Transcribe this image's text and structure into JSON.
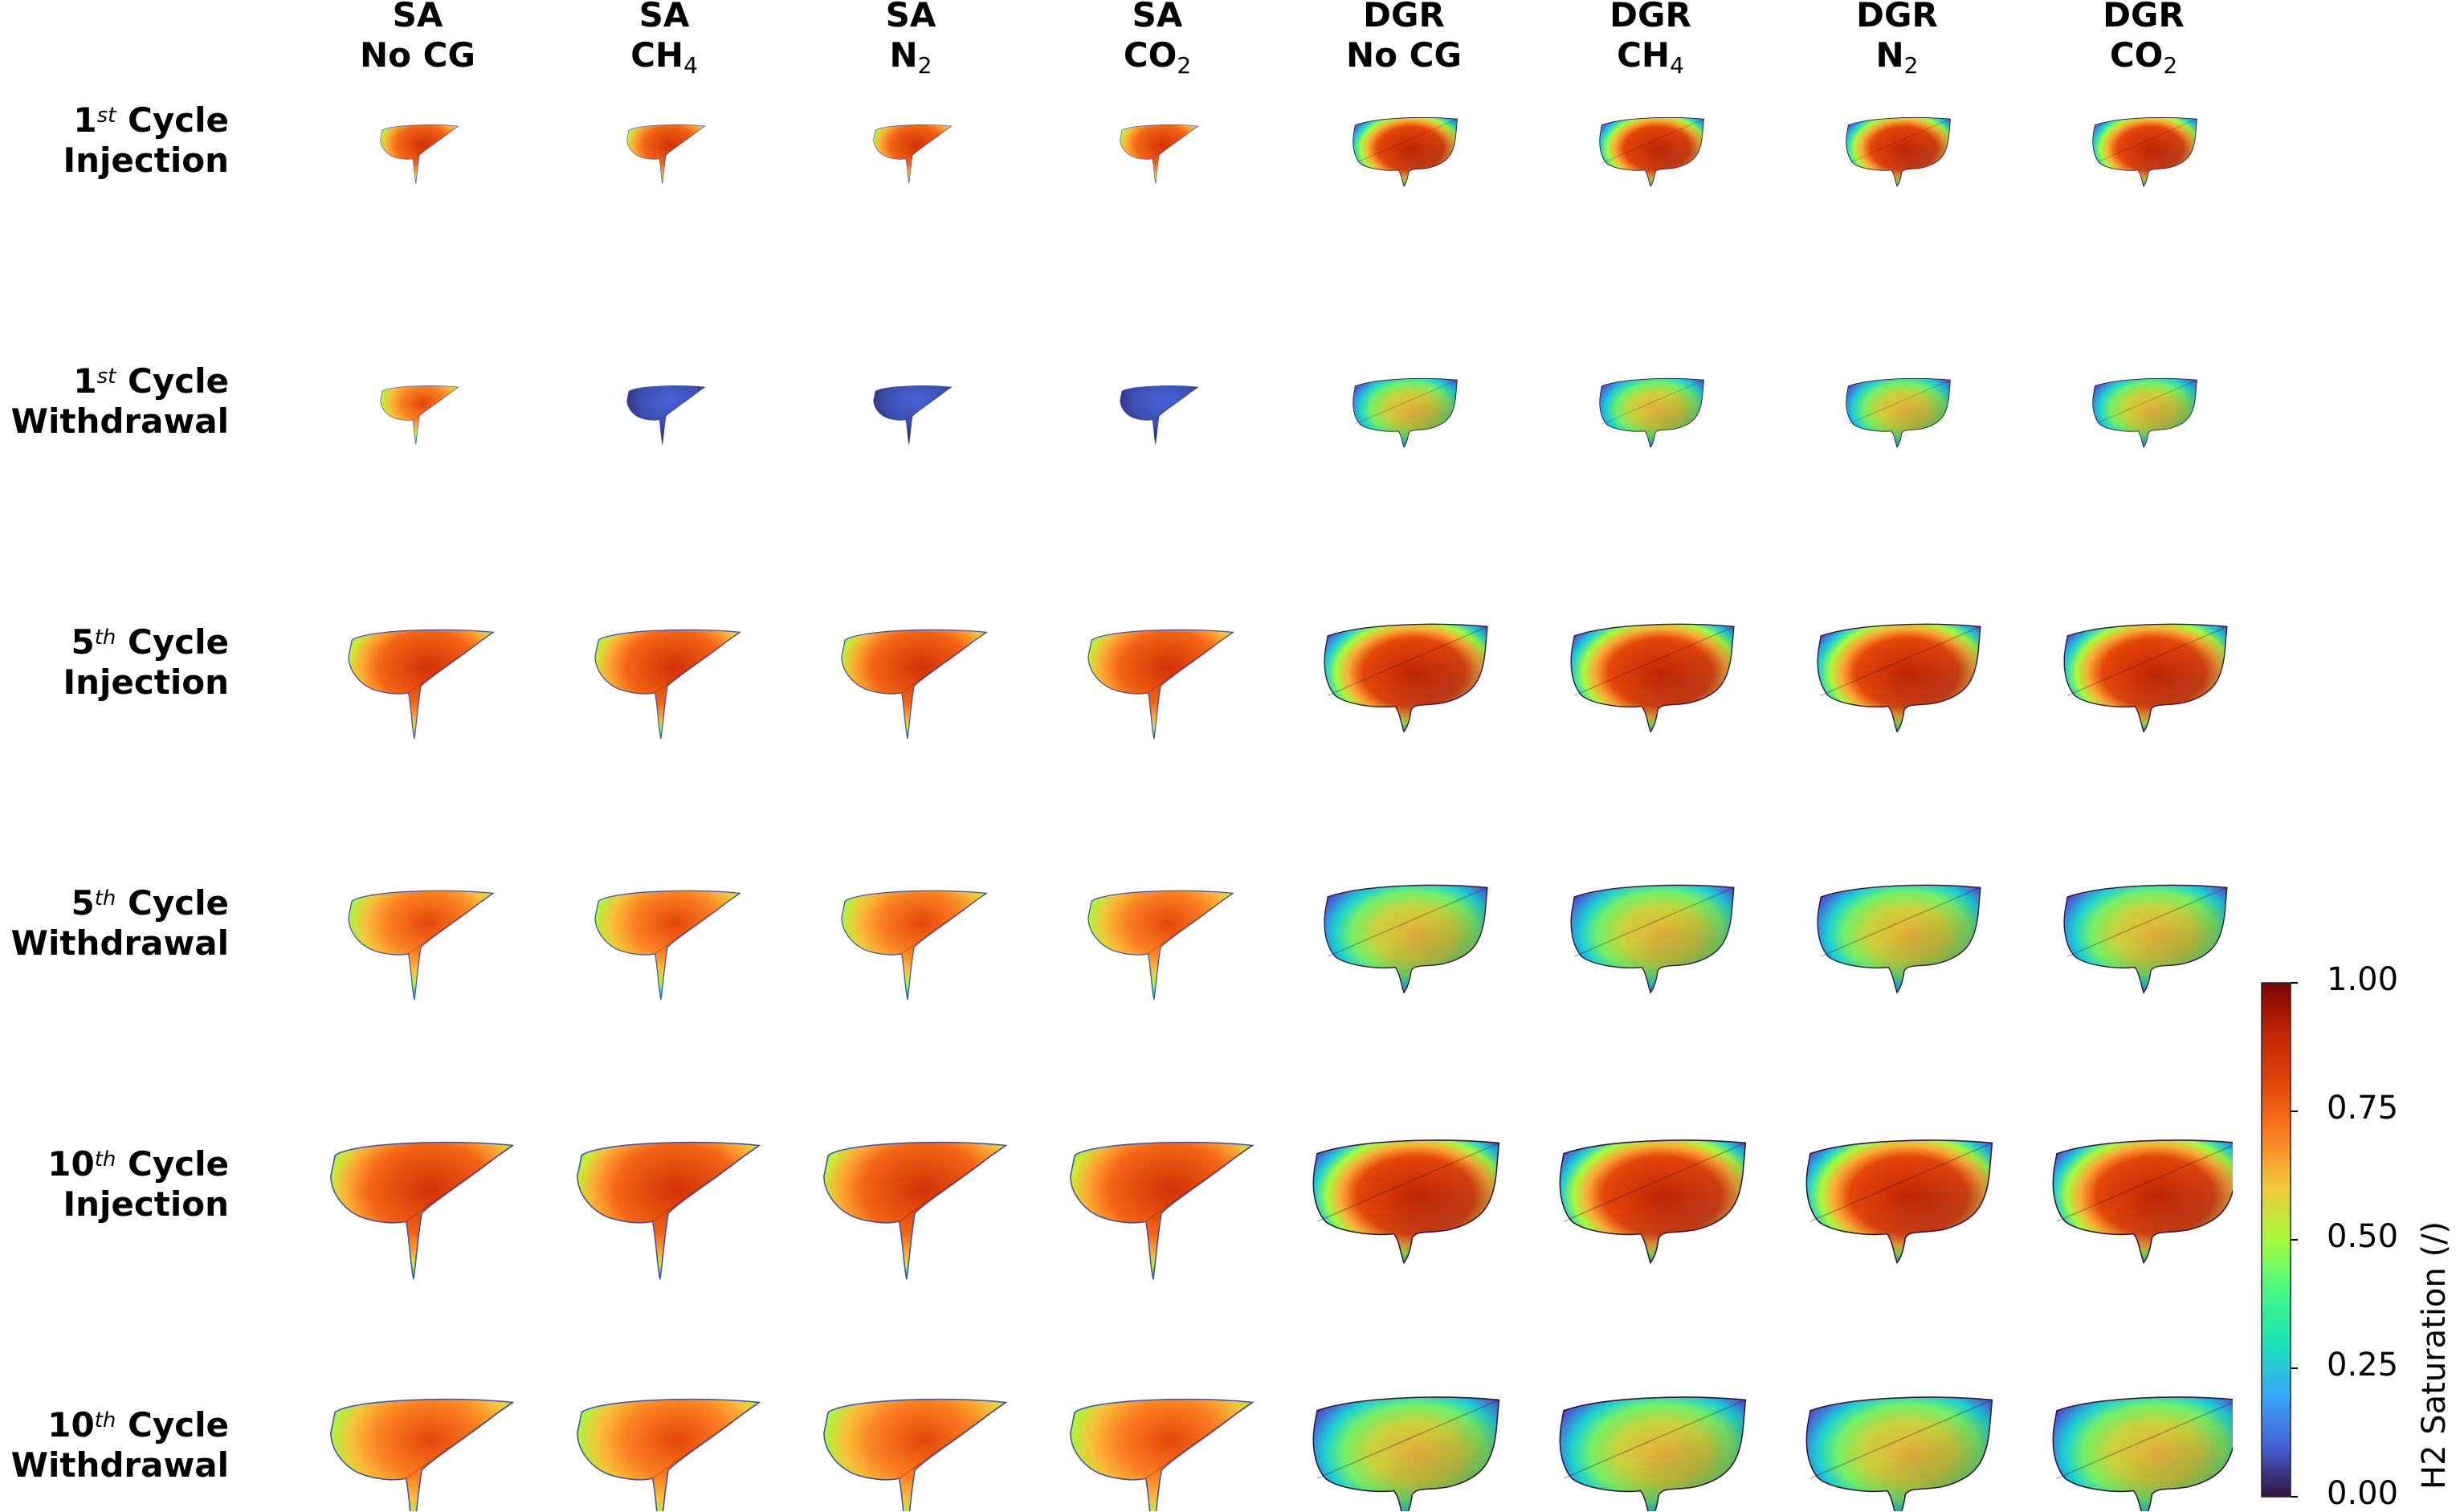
{
  "columns": [
    {
      "line1": "SA",
      "line2": "No CG",
      "sub": ""
    },
    {
      "line1": "SA",
      "line2": "CH",
      "sub": "4"
    },
    {
      "line1": "SA",
      "line2": "N",
      "sub": "2"
    },
    {
      "line1": "SA",
      "line2": "CO",
      "sub": "2"
    },
    {
      "line1": "DGR",
      "line2": "No CG",
      "sub": ""
    },
    {
      "line1": "DGR",
      "line2": "CH",
      "sub": "4"
    },
    {
      "line1": "DGR",
      "line2": "N",
      "sub": "2"
    },
    {
      "line1": "DGR",
      "line2": "CO",
      "sub": "2"
    }
  ],
  "rows": [
    {
      "num": "1",
      "sup": "st",
      "word": "Cycle",
      "line2": "Injection"
    },
    {
      "num": "1",
      "sup": "st",
      "word": "Cycle",
      "line2": "Withdrawal"
    },
    {
      "num": "5",
      "sup": "th",
      "word": "Cycle",
      "line2": "Injection"
    },
    {
      "num": "5",
      "sup": "th",
      "word": "Cycle",
      "line2": "Withdrawal"
    },
    {
      "num": "10",
      "sup": "th",
      "word": "Cycle",
      "line2": "Injection"
    },
    {
      "num": "10",
      "sup": "th",
      "word": "Cycle",
      "line2": "Withdrawal"
    }
  ],
  "colorbar": {
    "title": "H2 Saturation (/)",
    "ticks": [
      "1.00",
      "0.75",
      "0.50",
      "0.25",
      "0.00"
    ],
    "colors": [
      "#7a0403",
      "#c42503",
      "#f46516",
      "#fdab35",
      "#dedd32",
      "#a4fc3c",
      "#4aeb6e",
      "#1bcfd4",
      "#3e9bfe",
      "#4662d7",
      "#30123b"
    ]
  },
  "plumes": {
    "sa_row_scales": [
      0.42,
      0.42,
      0.78,
      0.78,
      0.98,
      0.98
    ],
    "dgr_row_scales": [
      0.55,
      0.55,
      0.86,
      0.86,
      0.98,
      0.98
    ],
    "states": [
      "injection",
      "withdrawal",
      "injection",
      "withdrawal",
      "injection",
      "withdrawal"
    ],
    "withdrawal_dark_sa_cols": [
      1,
      2,
      3
    ]
  }
}
